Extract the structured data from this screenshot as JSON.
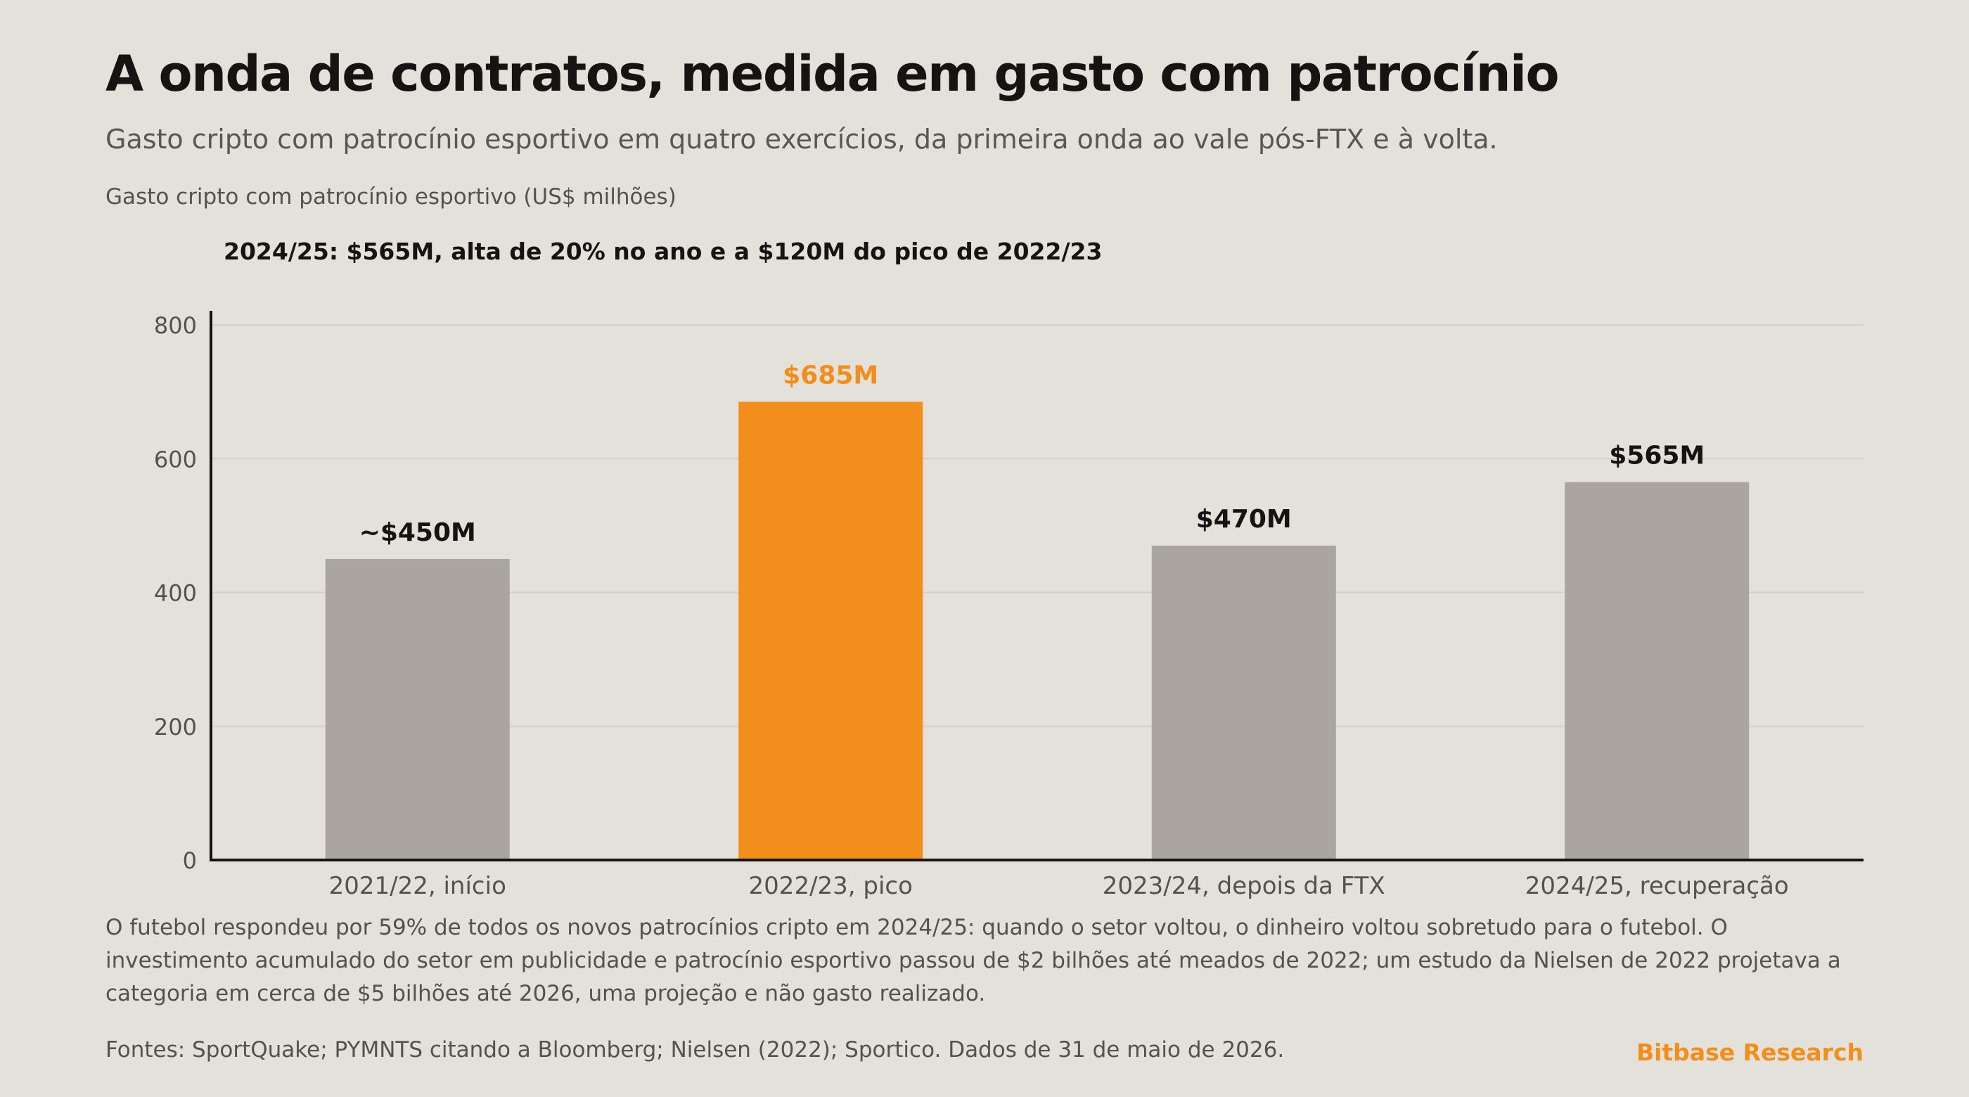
{
  "header": {
    "title": "A onda de contratos, medida em gasto com patrocínio",
    "subtitle": "Gasto cripto com patrocínio esportivo em quatro exercícios, da primeira onda ao vale pós-FTX e à volta.",
    "measure_label": "Gasto cripto com patrocínio esportivo (US$ milhões)",
    "callout": "2024/25: $565M, alta de 20% no ano e a $120M do pico de 2022/23"
  },
  "chart_data": {
    "type": "bar",
    "categories": [
      "2021/22, início",
      "2022/23, pico",
      "2023/24, depois da FTX",
      "2024/25, recuperação"
    ],
    "values": [
      450,
      685,
      470,
      565
    ],
    "value_labels": [
      "~$450M",
      "$685M",
      "$470M",
      "$565M"
    ],
    "highlight_index": 1,
    "ylim": [
      0,
      800
    ],
    "yticks": [
      0,
      200,
      400,
      600,
      800
    ],
    "ytick_labels": [
      "0",
      "200",
      "400",
      "600",
      "800"
    ],
    "grid": true
  },
  "footer": {
    "note": "O futebol respondeu por 59% de todos os novos patrocínios cripto em 2024/25: quando o setor voltou, o dinheiro voltou sobretudo para o futebol. O investimento acumulado do setor em publicidade e patrocínio esportivo passou de $2 bilhões até meados de 2022; um estudo da Nielsen de 2022 projetava a categoria em cerca de $5 bilhões até 2026, uma projeção e não gasto realizado.",
    "sources": "Fontes: SportQuake; PYMNTS citando a Bloomberg; Nielsen (2022); Sportico. Dados de 31 de maio de 2026.",
    "brand": "Bitbase Research"
  },
  "colors": {
    "background": "#e4e0da",
    "bar": "#aaa59f",
    "highlight": "#f28e1c",
    "text": "#161412",
    "muted": "#55514b",
    "grid": "#d3cec7",
    "axis": "#161412"
  }
}
